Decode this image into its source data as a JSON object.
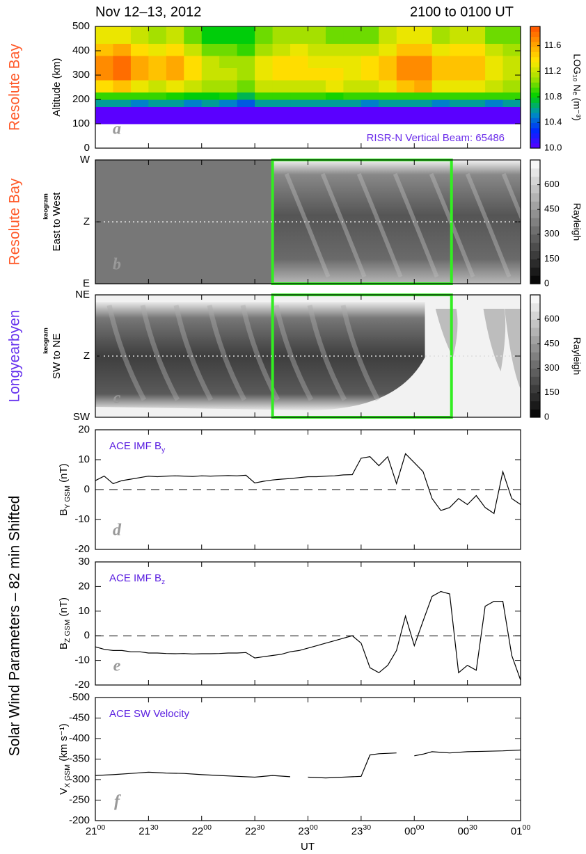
{
  "title": "Nov 12–13, 2012",
  "time_range": "2100 to 0100 UT",
  "side_label": "Solar Wind Parameters – 82 min Shifted",
  "x_label": "UT",
  "chart_data": [
    {
      "type": "heatmap",
      "side_label": "Resolute Bay",
      "side_color": "#ff5a2a",
      "ylabel": "Altitude (km)",
      "panel_label": "a",
      "annotation": "RISR-N Vertical Beam: 65486",
      "annotation_color": "#6a2bea",
      "xlim": [
        21,
        25
      ],
      "xticks": [
        21,
        21.5,
        22,
        22.5,
        23,
        23.5,
        24,
        24.5,
        25
      ],
      "ylim": [
        0,
        500
      ],
      "yticks": [
        0,
        100,
        200,
        300,
        400,
        500
      ],
      "x_edges": [
        21,
        21.1667,
        21.3333,
        21.5,
        21.6667,
        21.8333,
        22,
        22.1667,
        22.3333,
        22.5,
        22.6667,
        22.8333,
        23,
        23.1667,
        23.3333,
        23.5,
        23.6667,
        23.8333,
        24,
        24.1667,
        24.3333,
        24.5,
        24.6667,
        24.8333,
        25
      ],
      "y_edges": [
        100,
        170,
        200,
        230,
        280,
        330,
        380,
        430,
        500
      ],
      "z": [
        [
          10.0,
          10.0,
          10.0,
          10.0,
          10.0,
          10.0,
          10.0,
          10.0,
          10.0,
          10.0,
          10.0,
          10.0,
          10.0,
          10.0,
          10.0,
          10.0,
          10.0,
          10.0,
          10.0,
          10.0,
          10.0,
          10.0,
          10.0,
          10.0
        ],
        [
          10.6,
          10.6,
          10.5,
          10.6,
          10.6,
          10.5,
          10.6,
          10.5,
          10.4,
          10.6,
          10.6,
          10.6,
          10.6,
          10.6,
          10.6,
          10.5,
          10.6,
          10.6,
          10.6,
          10.5,
          10.6,
          10.6,
          10.5,
          10.6
        ],
        [
          10.9,
          10.9,
          10.9,
          10.9,
          10.85,
          10.8,
          10.8,
          10.85,
          10.7,
          10.9,
          10.9,
          10.9,
          10.9,
          10.85,
          10.9,
          10.9,
          10.9,
          10.9,
          10.9,
          10.9,
          10.9,
          10.9,
          10.9,
          10.9
        ],
        [
          11.4,
          11.5,
          11.3,
          11.2,
          11.3,
          11.2,
          11.1,
          11.1,
          11.0,
          11.2,
          11.2,
          11.2,
          11.2,
          11.3,
          11.2,
          11.2,
          11.3,
          11.5,
          11.6,
          11.3,
          11.3,
          11.3,
          11.2,
          11.1
        ],
        [
          11.7,
          11.8,
          11.6,
          11.5,
          11.6,
          11.4,
          11.2,
          11.2,
          11.1,
          11.3,
          11.4,
          11.4,
          11.4,
          11.4,
          11.3,
          11.4,
          11.5,
          11.7,
          11.7,
          11.5,
          11.5,
          11.5,
          11.3,
          11.2
        ],
        [
          11.7,
          11.8,
          11.6,
          11.5,
          11.6,
          11.4,
          11.2,
          11.1,
          11.1,
          11.3,
          11.4,
          11.4,
          11.3,
          11.3,
          11.3,
          11.4,
          11.5,
          11.7,
          11.7,
          11.5,
          11.5,
          11.5,
          11.3,
          11.2
        ],
        [
          11.5,
          11.6,
          11.4,
          11.3,
          11.4,
          11.2,
          11.0,
          11.0,
          10.9,
          11.1,
          11.2,
          11.3,
          11.2,
          11.2,
          11.2,
          11.2,
          11.3,
          11.5,
          11.5,
          11.3,
          11.4,
          11.4,
          11.2,
          11.1
        ],
        [
          11.3,
          11.3,
          11.2,
          11.1,
          11.2,
          11.0,
          10.8,
          10.8,
          10.8,
          11.0,
          11.1,
          11.1,
          11.1,
          11.0,
          11.0,
          11.0,
          11.2,
          11.3,
          11.3,
          11.1,
          11.2,
          11.2,
          11.0,
          11.0
        ]
      ],
      "colorscale": [
        "#5a00ff",
        "#0028ff",
        "#0090c0",
        "#00d000",
        "#a0e000",
        "#ffe800",
        "#ffa000",
        "#ff5000"
      ],
      "zlim": [
        10.0,
        11.9
      ],
      "zticks": [
        {
          "value": 10,
          "label": "10.0"
        },
        10.4,
        10.8,
        11.2,
        11.6
      ],
      "colorbar_label": "LOG₁₀ Nₑ (m⁻³)"
    },
    {
      "type": "keogram",
      "side_label": "Resolute Bay",
      "side_color": "#ff5a2a",
      "ylabel_small": "keogram",
      "ylabel": "East to West",
      "panel_label": "b",
      "xlim": [
        21,
        25
      ],
      "xticks": [
        21,
        21.5,
        22,
        22.5,
        23,
        23.5,
        24,
        24.5,
        25
      ],
      "ylim": [
        0,
        1
      ],
      "yticks": [
        {
          "value": 0,
          "label": "E"
        },
        {
          "value": 0.5,
          "label": "Z"
        },
        {
          "value": 1,
          "label": "W"
        }
      ],
      "ref_line": 0.5,
      "data_start": 22.667,
      "highlight": [
        22.667,
        24.35
      ],
      "highlight_color": "#33ee22",
      "colorscale": [
        "#000000",
        "#ffffff"
      ],
      "zlim": [
        0,
        750
      ],
      "zticks": [
        0,
        150,
        300,
        450,
        600
      ],
      "colorbar_label": "Rayleigh"
    },
    {
      "type": "keogram",
      "side_label": "Longyearbyen",
      "side_color": "#6633ee",
      "ylabel_small": "keogram",
      "ylabel": "SW to NE",
      "panel_label": "c",
      "xlim": [
        21,
        25
      ],
      "xticks": [
        21,
        21.5,
        22,
        22.5,
        23,
        23.5,
        24,
        24.5,
        25
      ],
      "ylim": [
        0,
        1
      ],
      "yticks": [
        {
          "value": 0,
          "label": "SW"
        },
        {
          "value": 0.5,
          "label": "Z"
        },
        {
          "value": 1,
          "label": "NE"
        }
      ],
      "ref_line": 0.5,
      "data_start": 21,
      "highlight": [
        22.667,
        24.35
      ],
      "highlight_color": "#33ee22",
      "colorscale": [
        "#000000",
        "#ffffff"
      ],
      "zlim": [
        0,
        750
      ],
      "zticks": [
        0,
        150,
        300,
        450,
        600
      ],
      "colorbar_label": "Rayleigh"
    },
    {
      "type": "line",
      "panel_label": "d",
      "annotation": {
        "text": "ACE IMF B",
        "sub": "y"
      },
      "annotation_color": "#5a1fe0",
      "ylabel": {
        "main": "B",
        "sub": "Y GSM",
        "unit": " (nT)"
      },
      "xlim": [
        21,
        25
      ],
      "xticks": [
        21,
        21.5,
        22,
        22.5,
        23,
        23.5,
        24,
        24.5,
        25
      ],
      "ylim": [
        -20,
        20
      ],
      "yticks": [
        -20,
        -10,
        0,
        10,
        20
      ],
      "ref_line": 0,
      "x": [
        21,
        21.083,
        21.167,
        21.25,
        21.333,
        21.417,
        21.5,
        21.583,
        21.667,
        21.75,
        21.833,
        21.917,
        22,
        22.083,
        22.167,
        22.25,
        22.333,
        22.417,
        22.5,
        22.583,
        22.667,
        22.75,
        22.833,
        22.917,
        23,
        23.083,
        23.167,
        23.25,
        23.333,
        23.417,
        23.5,
        23.583,
        23.667,
        23.75,
        23.833,
        23.917,
        24,
        24.083,
        24.167,
        24.25,
        24.333,
        24.417,
        24.5,
        24.583,
        24.667,
        24.75,
        24.833,
        24.917,
        25
      ],
      "series": [
        {
          "color": "#000000",
          "values": [
            3,
            4.5,
            2,
            3,
            3.5,
            4,
            4.5,
            4.3,
            4.5,
            4.6,
            4.5,
            4.4,
            4.6,
            4.5,
            4.6,
            4.7,
            4.6,
            4.8,
            2.2,
            2.8,
            3.2,
            3.5,
            3.7,
            4,
            4.3,
            4.3,
            4.5,
            4.6,
            4.9,
            5,
            10.5,
            11,
            8,
            11,
            2,
            12,
            9,
            6,
            -3,
            -7,
            -6,
            -3,
            -5,
            -2,
            -6,
            -8,
            6,
            -3,
            -5
          ]
        }
      ]
    },
    {
      "type": "line",
      "panel_label": "e",
      "annotation": {
        "text": "ACE IMF B",
        "sub": "z"
      },
      "annotation_color": "#5a1fe0",
      "ylabel": {
        "main": "B",
        "sub": "Z GSM",
        "unit": " (nT)"
      },
      "xlim": [
        21,
        25
      ],
      "xticks": [
        21,
        21.5,
        22,
        22.5,
        23,
        23.5,
        24,
        24.5,
        25
      ],
      "ylim": [
        -20,
        30
      ],
      "yticks": [
        -20,
        -10,
        0,
        10,
        20,
        30
      ],
      "ref_line": 0,
      "x": [
        21,
        21.083,
        21.167,
        21.25,
        21.333,
        21.417,
        21.5,
        21.583,
        21.667,
        21.75,
        21.833,
        21.917,
        22,
        22.083,
        22.167,
        22.25,
        22.333,
        22.417,
        22.5,
        22.583,
        22.667,
        22.75,
        22.833,
        22.917,
        23,
        23.083,
        23.167,
        23.25,
        23.333,
        23.417,
        23.5,
        23.583,
        23.667,
        23.75,
        23.833,
        23.917,
        24,
        24.083,
        24.167,
        24.25,
        24.333,
        24.417,
        24.5,
        24.583,
        24.667,
        24.75,
        24.833,
        24.917,
        25
      ],
      "series": [
        {
          "color": "#000000",
          "values": [
            -4.5,
            -5.5,
            -6,
            -6,
            -6.5,
            -6.5,
            -7,
            -7,
            -7.2,
            -7.3,
            -7.2,
            -7.4,
            -7.3,
            -7.3,
            -7.2,
            -7,
            -7,
            -6.8,
            -9,
            -8.5,
            -8,
            -7.5,
            -6.5,
            -6,
            -5,
            -4,
            -3,
            -2,
            -1,
            0,
            -3,
            -13,
            -15,
            -12,
            -6,
            8,
            -4,
            6,
            16,
            18,
            17,
            -15,
            -12,
            -14,
            12,
            14,
            14,
            -8,
            -18
          ]
        }
      ]
    },
    {
      "type": "line",
      "panel_label": "f",
      "annotation": {
        "text": "ACE SW Velocity"
      },
      "annotation_color": "#5a1fe0",
      "ylabel": {
        "main": "V",
        "sub": "X GSM",
        "unit": " (km s⁻¹)"
      },
      "xlim": [
        21,
        25
      ],
      "xticks": [
        {
          "value": 21,
          "label": "21",
          "sup": "00"
        },
        {
          "value": 21.5,
          "label": "21",
          "sup": "30"
        },
        {
          "value": 22,
          "label": "22",
          "sup": "00"
        },
        {
          "value": 22.5,
          "label": "22",
          "sup": "30"
        },
        {
          "value": 23,
          "label": "23",
          "sup": "00"
        },
        {
          "value": 23.5,
          "label": "23",
          "sup": "30"
        },
        {
          "value": 24,
          "label": "00",
          "sup": "00"
        },
        {
          "value": 24.5,
          "label": "00",
          "sup": "30"
        },
        {
          "value": 25,
          "label": "01",
          "sup": "00"
        }
      ],
      "ylim": [
        -200,
        -500
      ],
      "yticks": [
        -500,
        -450,
        -400,
        -350,
        -300,
        -250,
        -200
      ],
      "x": [
        21,
        21.167,
        21.333,
        21.5,
        21.667,
        21.833,
        22,
        22.167,
        22.333,
        22.5,
        22.667,
        22.833,
        22.917,
        23,
        23.167,
        23.333,
        23.5,
        23.583,
        23.667,
        23.833,
        23.917,
        24,
        24.083,
        24.167,
        24.333,
        24.5,
        24.667,
        24.833,
        25
      ],
      "series": [
        {
          "color": "#000000",
          "values": [
            -310,
            -312,
            -315,
            -318,
            -316,
            -315,
            -312,
            -310,
            -308,
            -306,
            -310,
            -307,
            null,
            -306,
            -304,
            -306,
            -308,
            -360,
            -363,
            -365,
            null,
            -358,
            -362,
            -368,
            -365,
            -368,
            -369,
            -370,
            -372
          ]
        }
      ]
    }
  ]
}
